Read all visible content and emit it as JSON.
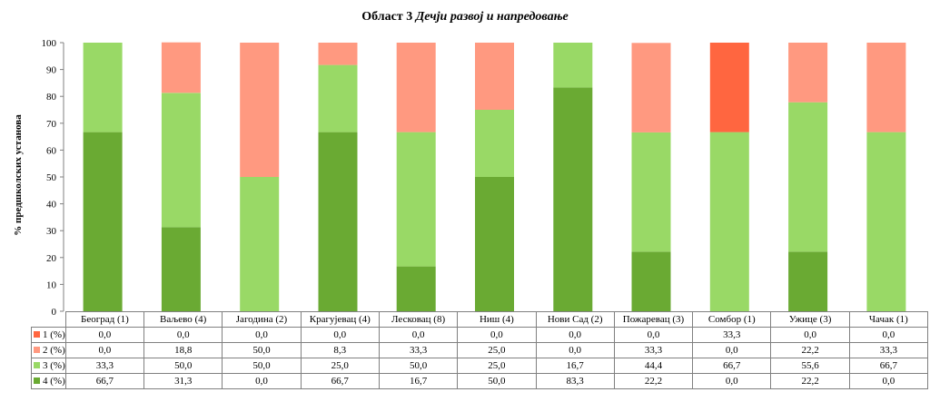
{
  "title": {
    "main": "Област 3",
    "italic": "Дечји развој и напредовање"
  },
  "chart_data": {
    "type": "bar",
    "stacked": true,
    "ylabel": "% предшколских установа",
    "ylim": [
      0,
      100
    ],
    "yticks": [
      0,
      10,
      20,
      30,
      40,
      50,
      60,
      70,
      80,
      90,
      100
    ],
    "categories": [
      "Београд (1)",
      "Ваљево (4)",
      "Јагодина (2)",
      "Крагујевац (4)",
      "Лесковац (8)",
      "Ниш (4)",
      "Нови Сад (2)",
      "Пожаревац (3)",
      "Сомбор (1)",
      "Ужице (3)",
      "Чачак (1)"
    ],
    "series": [
      {
        "name": "1 (%)",
        "color": "#ff6640",
        "values": [
          0.0,
          0.0,
          0.0,
          0.0,
          0.0,
          0.0,
          0.0,
          0.0,
          33.3,
          0.0,
          0.0
        ],
        "labels": [
          "0,0",
          "0,0",
          "0,0",
          "0,0",
          "0,0",
          "0,0",
          "0,0",
          "0,0",
          "33,3",
          "0,0",
          "0,0"
        ]
      },
      {
        "name": "2 (%)",
        "color": "#ff9980",
        "values": [
          0.0,
          18.8,
          50.0,
          8.3,
          33.3,
          25.0,
          0.0,
          33.3,
          0.0,
          22.2,
          33.3
        ],
        "labels": [
          "0,0",
          "18,8",
          "50,0",
          "8,3",
          "33,3",
          "25,0",
          "0,0",
          "33,3",
          "0,0",
          "22,2",
          "33,3"
        ]
      },
      {
        "name": "3 (%)",
        "color": "#99d966",
        "values": [
          33.3,
          50.0,
          50.0,
          25.0,
          50.0,
          25.0,
          16.7,
          44.4,
          66.7,
          55.6,
          66.7
        ],
        "labels": [
          "33,3",
          "50,0",
          "50,0",
          "25,0",
          "50,0",
          "25,0",
          "16,7",
          "44,4",
          "66,7",
          "55,6",
          "66,7"
        ]
      },
      {
        "name": "4 (%)",
        "color": "#6aaa33",
        "values": [
          66.7,
          31.3,
          0.0,
          66.7,
          16.7,
          50.0,
          83.3,
          22.2,
          0.0,
          22.2,
          0.0
        ],
        "labels": [
          "66,7",
          "31,3",
          "0,0",
          "66,7",
          "16,7",
          "50,0",
          "83,3",
          "22,2",
          "0,0",
          "22,2",
          "0,0"
        ]
      }
    ],
    "legend": "table",
    "grid": false
  }
}
